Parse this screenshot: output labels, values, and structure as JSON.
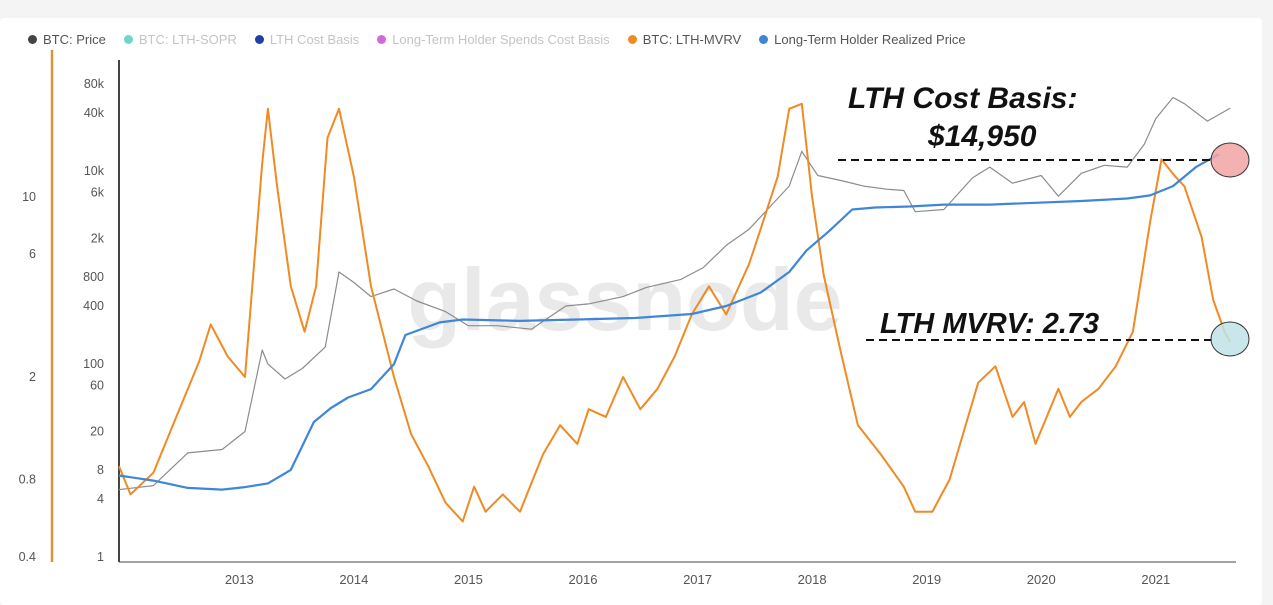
{
  "title_fragment": "",
  "legend": [
    {
      "label": "BTC: Price",
      "color": "#444444",
      "dim": false
    },
    {
      "label": "BTC: LTH-SOPR",
      "color": "#6fd6c8",
      "dim": true
    },
    {
      "label": "LTH Cost Basis",
      "color": "#1f3fa8",
      "dim": true
    },
    {
      "label": "Long-Term Holder Spends Cost Basis",
      "color": "#cf6bd8",
      "dim": true
    },
    {
      "label": "BTC: LTH-MVRV",
      "color": "#f08a24",
      "dim": false
    },
    {
      "label": "Long-Term Holder Realized Price",
      "color": "#3f86d9",
      "dim": false
    }
  ],
  "watermark": "glassnode",
  "annotations": {
    "cost_basis_line1": "LTH Cost Basis:",
    "cost_basis_line2": "$14,950",
    "mvrv": "LTH MVRV: 2.73"
  },
  "colors": {
    "price": "#8c8c8c",
    "mvrv": "#f08a24",
    "realized": "#3f86d9",
    "axis_left": "#d9943a",
    "highlight_red": "#f2a3a3",
    "highlight_teal": "#bfe3e6"
  },
  "chart_data": {
    "type": "line",
    "title": "",
    "x_axis": {
      "ticks": [
        "2013",
        "2014",
        "2015",
        "2016",
        "2017",
        "2018",
        "2019",
        "2020",
        "2021"
      ]
    },
    "y_axis_price": {
      "scale": "log",
      "ticks": [
        "80k",
        "40k",
        "10k",
        "6k",
        "2k",
        "800",
        "400",
        "100",
        "60",
        "20",
        "8",
        "4",
        "1"
      ],
      "range": [
        1,
        80000
      ]
    },
    "y_axis_mvrv": {
      "scale": "log",
      "ticks": [
        "10",
        "6",
        "2",
        "0.8",
        "0.4"
      ],
      "range": [
        0.4,
        30
      ]
    },
    "series": [
      {
        "name": "BTC: Price",
        "axis": "price",
        "x": [
          2012.0,
          2012.3,
          2012.6,
          2012.9,
          2013.1,
          2013.25,
          2013.3,
          2013.45,
          2013.6,
          2013.8,
          2013.92,
          2014.05,
          2014.2,
          2014.4,
          2014.6,
          2014.85,
          2015.05,
          2015.3,
          2015.6,
          2015.9,
          2016.1,
          2016.4,
          2016.6,
          2016.9,
          2017.1,
          2017.3,
          2017.5,
          2017.7,
          2017.85,
          2017.96,
          2018.1,
          2018.3,
          2018.5,
          2018.7,
          2018.85,
          2018.95,
          2019.2,
          2019.45,
          2019.6,
          2019.8,
          2020.05,
          2020.2,
          2020.4,
          2020.6,
          2020.8,
          2020.95,
          2021.05,
          2021.2,
          2021.3,
          2021.5,
          2021.7
        ],
        "y": [
          5,
          5.5,
          12,
          13,
          20,
          140,
          100,
          70,
          90,
          150,
          900,
          700,
          500,
          600,
          450,
          350,
          250,
          250,
          230,
          400,
          420,
          500,
          620,
          750,
          1000,
          1700,
          2500,
          4500,
          7000,
          16000,
          9000,
          8000,
          7000,
          6500,
          6300,
          3800,
          4000,
          8500,
          11000,
          7500,
          9000,
          5500,
          9500,
          11500,
          11000,
          19000,
          35000,
          58000,
          50000,
          33000,
          45000
        ]
      },
      {
        "name": "BTC: LTH-MVRV",
        "axis": "mvrv",
        "x": [
          2012.0,
          2012.1,
          2012.3,
          2012.5,
          2012.7,
          2012.8,
          2012.95,
          2013.1,
          2013.25,
          2013.3,
          2013.38,
          2013.5,
          2013.62,
          2013.72,
          2013.82,
          2013.92,
          2014.05,
          2014.2,
          2014.4,
          2014.55,
          2014.7,
          2014.85,
          2015.0,
          2015.1,
          2015.2,
          2015.35,
          2015.5,
          2015.7,
          2015.85,
          2016.0,
          2016.1,
          2016.25,
          2016.4,
          2016.55,
          2016.7,
          2016.85,
          2017.0,
          2017.15,
          2017.3,
          2017.5,
          2017.6,
          2017.75,
          2017.85,
          2017.96,
          2018.05,
          2018.15,
          2018.3,
          2018.45,
          2018.65,
          2018.85,
          2018.95,
          2019.1,
          2019.25,
          2019.5,
          2019.65,
          2019.8,
          2019.9,
          2020.0,
          2020.2,
          2020.3,
          2020.4,
          2020.55,
          2020.7,
          2020.85,
          2021.0,
          2021.1,
          2021.22,
          2021.3,
          2021.45,
          2021.55,
          2021.65,
          2021.7
        ],
        "y": [
          0.9,
          0.7,
          0.85,
          1.4,
          2.3,
          3.2,
          2.4,
          2.0,
          13.5,
          22,
          11,
          4.5,
          3.0,
          4.5,
          17,
          22,
          12,
          4.5,
          2.0,
          1.2,
          0.9,
          0.65,
          0.55,
          0.75,
          0.6,
          0.7,
          0.6,
          1.0,
          1.3,
          1.1,
          1.5,
          1.4,
          2.0,
          1.5,
          1.8,
          2.4,
          3.5,
          4.5,
          3.5,
          5.5,
          7.5,
          12,
          22,
          23,
          10,
          5,
          2.5,
          1.3,
          1.0,
          0.75,
          0.6,
          0.6,
          0.8,
          1.9,
          2.2,
          1.4,
          1.6,
          1.1,
          1.8,
          1.4,
          1.6,
          1.8,
          2.2,
          3.0,
          8,
          14,
          12,
          11,
          7,
          4,
          3.0,
          2.73
        ]
      },
      {
        "name": "Long-Term Holder Realized Price",
        "axis": "price",
        "x": [
          2012.0,
          2012.3,
          2012.6,
          2012.9,
          2013.1,
          2013.3,
          2013.5,
          2013.7,
          2013.85,
          2014.0,
          2014.2,
          2014.4,
          2014.5,
          2014.8,
          2015.0,
          2015.5,
          2016.0,
          2016.5,
          2017.0,
          2017.3,
          2017.6,
          2017.85,
          2018.0,
          2018.2,
          2018.4,
          2018.6,
          2018.9,
          2019.2,
          2019.6,
          2020.0,
          2020.4,
          2020.8,
          2021.0,
          2021.2,
          2021.4,
          2021.6
        ],
        "y": [
          7,
          6.2,
          5.2,
          5.0,
          5.3,
          5.8,
          8,
          25,
          35,
          45,
          55,
          100,
          200,
          270,
          290,
          280,
          290,
          300,
          330,
          400,
          550,
          900,
          1500,
          2400,
          4000,
          4200,
          4300,
          4500,
          4500,
          4700,
          4900,
          5200,
          5600,
          7000,
          11000,
          14950
        ]
      }
    ]
  }
}
